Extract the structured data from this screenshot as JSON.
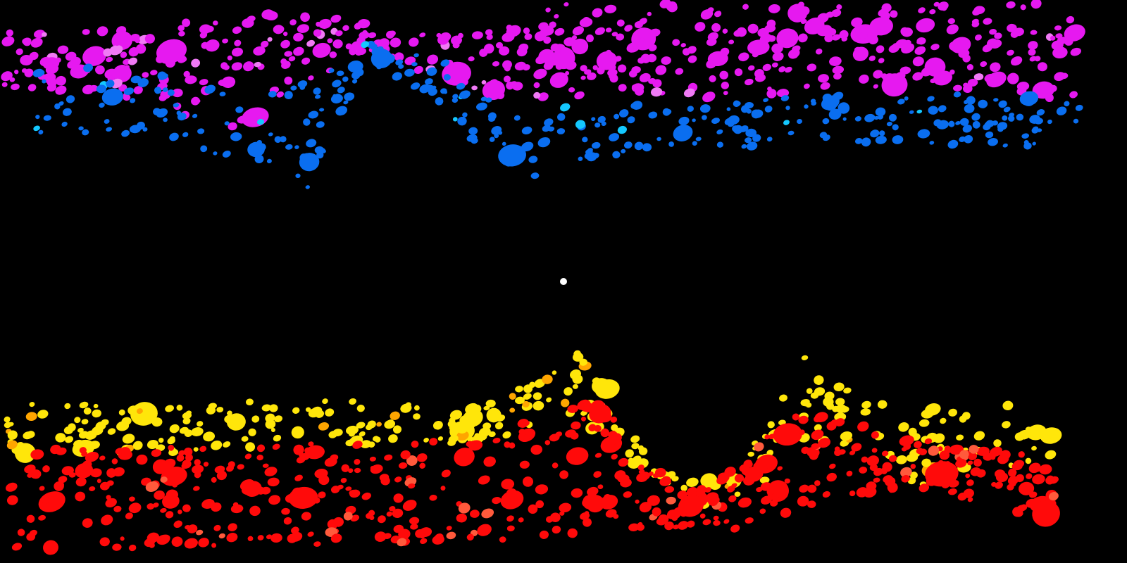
{
  "scene": {
    "background": "#000000",
    "clusters": [
      {
        "name": "magenta",
        "color": "#e619f0",
        "highlight": "#f07af5"
      },
      {
        "name": "blue",
        "color": "#0a6ef0",
        "highlight": "#14c8ff"
      },
      {
        "name": "yellow",
        "color": "#ffe60a",
        "highlight": "#ffa500"
      },
      {
        "name": "red",
        "color": "#ff0a0a",
        "highlight": "#ff5a3c"
      }
    ],
    "center_point": {
      "color": "#ffffff"
    }
  }
}
